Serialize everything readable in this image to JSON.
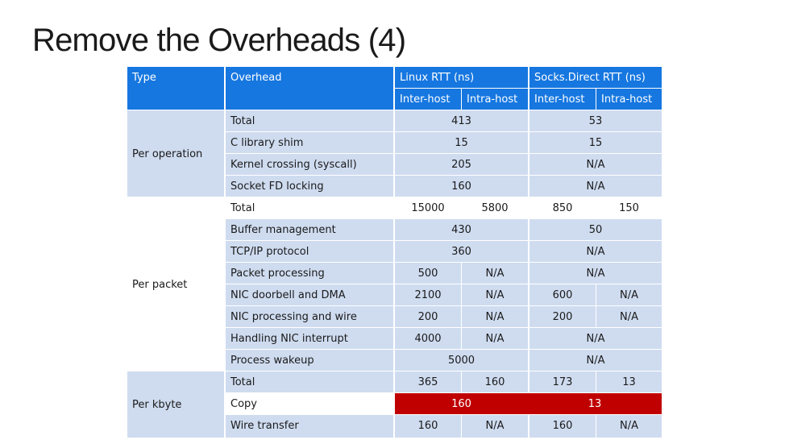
{
  "slide": {
    "title": "Remove the Overheads (4)"
  },
  "colors": {
    "header": "#1677e0",
    "band": "#cfdcf0",
    "highlight": "#c00000"
  },
  "table": {
    "headers": {
      "type": "Type",
      "overhead": "Overhead",
      "linux": "Linux RTT (ns)",
      "socks": "Socks.Direct RTT (ns)",
      "linux_inter": "Inter-host",
      "linux_intra": "Intra-host",
      "socks_inter": "Inter-host",
      "socks_intra": "Intra-host"
    },
    "groups": {
      "per_operation": "Per operation",
      "per_packet": "Per packet",
      "per_kbyte": "Per kbyte"
    },
    "rows": {
      "op_total": {
        "label": "Total",
        "linux": "413",
        "socks": "53"
      },
      "c_library_shim": {
        "label": "C library shim",
        "linux": "15",
        "socks": "15"
      },
      "kernel_crossing": {
        "label": "Kernel crossing (syscall)",
        "linux": "205",
        "socks": "N/A"
      },
      "socket_fd_locking": {
        "label": "Socket FD locking",
        "linux": "160",
        "socks": "N/A"
      },
      "pkt_total": {
        "label": "Total",
        "linux_inter": "15000",
        "linux_intra": "5800",
        "socks_inter": "850",
        "socks_intra": "150"
      },
      "buffer_mgmt": {
        "label": "Buffer management",
        "linux": "430",
        "socks": "50"
      },
      "tcpip": {
        "label": "TCP/IP protocol",
        "linux": "360",
        "socks": "N/A"
      },
      "packet_processing": {
        "label": "Packet processing",
        "linux_inter": "500",
        "linux_intra": "N/A",
        "socks": "N/A"
      },
      "nic_doorbell": {
        "label": "NIC doorbell and DMA",
        "linux_inter": "2100",
        "linux_intra": "N/A",
        "socks_inter": "600",
        "socks_intra": "N/A"
      },
      "nic_processing": {
        "label": "NIC processing and wire",
        "linux_inter": "200",
        "linux_intra": "N/A",
        "socks_inter": "200",
        "socks_intra": "N/A"
      },
      "nic_interrupt": {
        "label": "Handling NIC interrupt",
        "linux_inter": "4000",
        "linux_intra": "N/A",
        "socks": "N/A"
      },
      "process_wakeup": {
        "label": "Process wakeup",
        "linux": "5000",
        "socks": "N/A"
      },
      "kb_total": {
        "label": "Total",
        "linux_inter": "365",
        "linux_intra": "160",
        "socks_inter": "173",
        "socks_intra": "13"
      },
      "copy": {
        "label": "Copy",
        "linux": "160",
        "socks": "13"
      },
      "wire_transfer": {
        "label": "Wire transfer",
        "linux_inter": "160",
        "linux_intra": "N/A",
        "socks_inter": "160",
        "socks_intra": "N/A"
      }
    }
  }
}
